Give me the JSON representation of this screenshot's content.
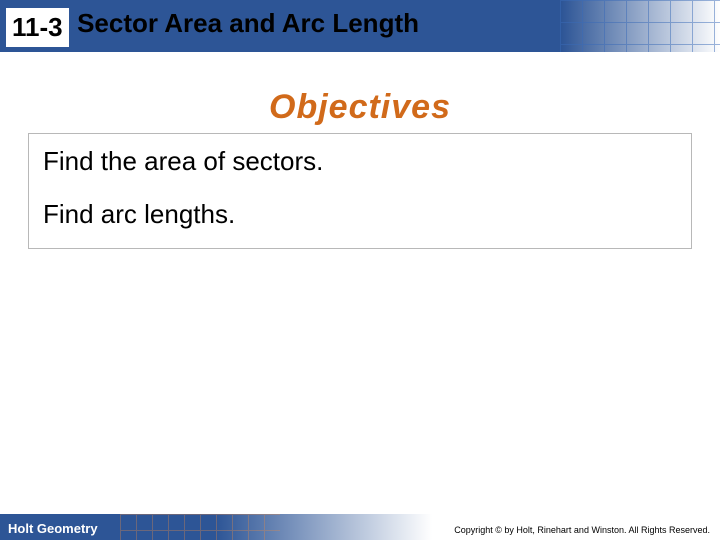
{
  "header": {
    "lesson_number": "11-3",
    "lesson_title": "Sector Area and Arc Length",
    "bar_color": "#2d5596",
    "grid_color": "#3a6bb8"
  },
  "objectives": {
    "heading": "Objectives",
    "heading_color": "#d16a1a",
    "items": [
      "Find the area of sectors.",
      "Find arc lengths."
    ],
    "border_color": "#b8b8b8",
    "text_fontsize": 26
  },
  "footer": {
    "left_text": "Holt Geometry",
    "right_text": "Copyright © by Holt, Rinehart and Winston. All Rights Reserved.",
    "bar_color": "#2d5596",
    "grid_color": "#e08a4a"
  }
}
